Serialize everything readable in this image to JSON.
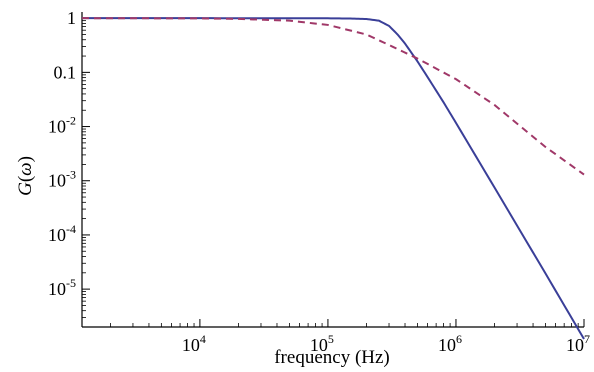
{
  "chart_data": {
    "type": "line",
    "title": "",
    "xlabel": "frequency (Hz)",
    "ylabel": "G(ω)",
    "ylabel_parts": {
      "main": "G",
      "open": "(",
      "var": "ω",
      "close": ")"
    },
    "x_scale": "log",
    "y_scale": "log",
    "xlim": [
      1200,
      10000000
    ],
    "ylim": [
      2e-06,
      1.3
    ],
    "grid": false,
    "legend": "none",
    "x_ticks": [
      {
        "value": 10000,
        "base": "10",
        "exp": "4"
      },
      {
        "value": 100000,
        "base": "10",
        "exp": "5"
      },
      {
        "value": 1000000,
        "base": "10",
        "exp": "6"
      },
      {
        "value": 10000000,
        "base": "10",
        "exp": "7"
      }
    ],
    "y_ticks": [
      {
        "value": 1,
        "text": "1",
        "base": "",
        "exp": ""
      },
      {
        "value": 0.1,
        "text": "0.1",
        "base": "",
        "exp": ""
      },
      {
        "value": 0.01,
        "text": "",
        "base": "10",
        "exp": "-2"
      },
      {
        "value": 0.001,
        "text": "",
        "base": "10",
        "exp": "-3"
      },
      {
        "value": 0.0001,
        "text": "",
        "base": "10",
        "exp": "-4"
      },
      {
        "value": 1e-05,
        "text": "",
        "base": "10",
        "exp": "-5"
      }
    ],
    "series": [
      {
        "color": "#3a3f98",
        "style": "solid",
        "points": [
          [
            1200,
            1.0
          ],
          [
            10000,
            1.0
          ],
          [
            50000,
            0.998
          ],
          [
            100000,
            0.995
          ],
          [
            150000,
            0.985
          ],
          [
            200000,
            0.965
          ],
          [
            250000,
            0.9
          ],
          [
            300000,
            0.72
          ],
          [
            350000,
            0.5
          ],
          [
            400000,
            0.34
          ],
          [
            500000,
            0.16
          ],
          [
            600000,
            0.082
          ],
          [
            800000,
            0.028
          ],
          [
            1000000,
            0.0117
          ],
          [
            2000000,
            0.00075
          ],
          [
            5000000,
            1.95e-05
          ],
          [
            10000000,
            1.2e-06
          ]
        ]
      },
      {
        "color": "#a03868",
        "style": "dashed",
        "points": [
          [
            1200,
            1.0
          ],
          [
            10000,
            0.99
          ],
          [
            20000,
            0.97
          ],
          [
            50000,
            0.9
          ],
          [
            100000,
            0.75
          ],
          [
            200000,
            0.5
          ],
          [
            300000,
            0.32
          ],
          [
            500000,
            0.18
          ],
          [
            1000000,
            0.075
          ],
          [
            2000000,
            0.025
          ],
          [
            5000000,
            0.0042
          ],
          [
            10000000,
            0.0013
          ]
        ]
      }
    ]
  }
}
